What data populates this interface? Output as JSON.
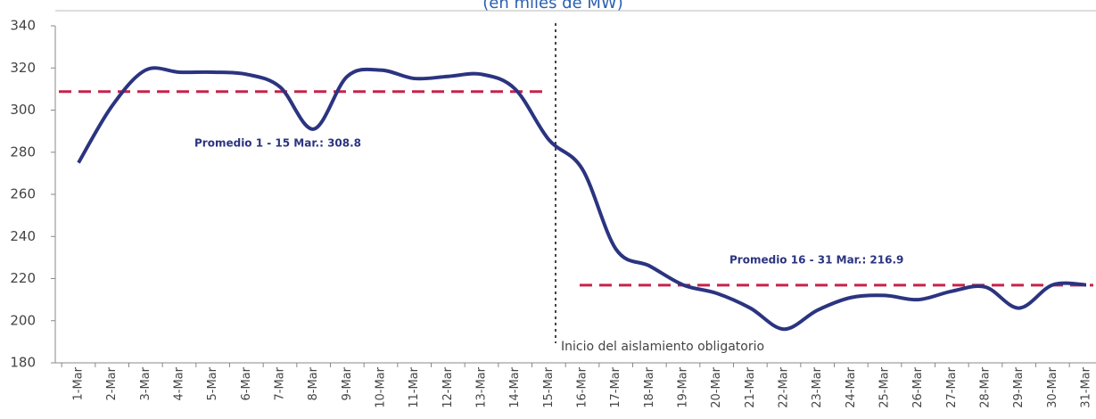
{
  "chart_data": {
    "type": "line",
    "subtitle": "(en miles de MW)",
    "categories": [
      "1-Mar",
      "2-Mar",
      "3-Mar",
      "4-Mar",
      "5-Mar",
      "6-Mar",
      "7-Mar",
      "8-Mar",
      "9-Mar",
      "10-Mar",
      "11-Mar",
      "12-Mar",
      "13-Mar",
      "14-Mar",
      "15-Mar",
      "16-Mar",
      "17-Mar",
      "18-Mar",
      "19-Mar",
      "20-Mar",
      "21-Mar",
      "22-Mar",
      "23-Mar",
      "24-Mar",
      "25-Mar",
      "26-Mar",
      "27-Mar",
      "28-Mar",
      "29-Mar",
      "30-Mar",
      "31-Mar"
    ],
    "series": [
      {
        "color": "#2b3480",
        "values": [
          275,
          302,
          319,
          318,
          318,
          317,
          311,
          291,
          316,
          319,
          315,
          316,
          317,
          310,
          286,
          272,
          234,
          226,
          217,
          213,
          206,
          196,
          205,
          211,
          212,
          210,
          214,
          216,
          206,
          217,
          217
        ]
      }
    ],
    "averages": [
      {
        "label": "Promedio 1 - 15 Mar.: 308.8",
        "value": 308.8
      },
      {
        "label": "Promedio 16 - 31 Mar.: 216.9",
        "value": 216.9
      }
    ],
    "average_color": "#c8224a",
    "annotation": "Inicio del aislamiento obligatorio",
    "ylim": [
      180,
      340
    ],
    "yticks": [
      180,
      200,
      220,
      240,
      260,
      280,
      300,
      320,
      340
    ]
  }
}
